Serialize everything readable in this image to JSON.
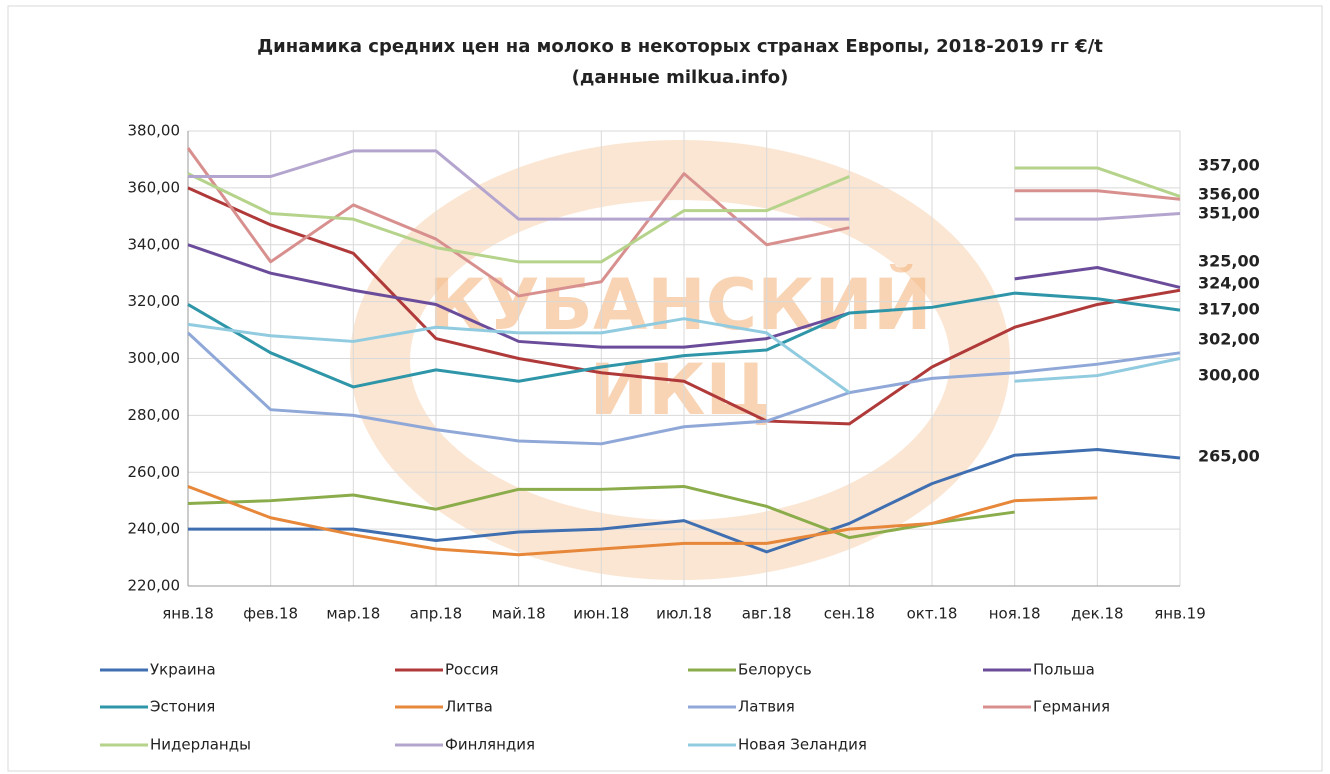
{
  "chart_data": {
    "type": "line",
    "title": [
      "Динамика средних цен на молоко в некоторых странах Европы, 2018-2019 гг €/t",
      "(данные milkua.info)"
    ],
    "watermark": [
      "КУБАНСКИЙ",
      "ИКЦ"
    ],
    "categories": [
      "янв.18",
      "фев.18",
      "мар.18",
      "апр.18",
      "май.18",
      "июн.18",
      "июл.18",
      "авг.18",
      "сен.18",
      "окт.18",
      "ноя.18",
      "дек.18",
      "янв.19"
    ],
    "ylim": [
      220,
      380
    ],
    "yticks": [
      {
        "value": 220,
        "label": "220,00"
      },
      {
        "value": 240,
        "label": "240,00"
      },
      {
        "value": 260,
        "label": "260,00"
      },
      {
        "value": 280,
        "label": "280,00"
      },
      {
        "value": 300,
        "label": "300,00"
      },
      {
        "value": 320,
        "label": "320,00"
      },
      {
        "value": 340,
        "label": "340,00"
      },
      {
        "value": 360,
        "label": "360,00"
      },
      {
        "value": 380,
        "label": "380,00"
      }
    ],
    "grid": true,
    "annotations": [
      "357,00",
      "356,00",
      "351,00",
      "325,00",
      "324,00",
      "317,00",
      "302,00",
      "300,00",
      "265,00"
    ],
    "series": [
      {
        "name": "Украина",
        "color": "#3f6fb0",
        "values": [
          240,
          240,
          240,
          236,
          239,
          240,
          243,
          232,
          242,
          256,
          266,
          268,
          265
        ]
      },
      {
        "name": "Россия",
        "color": "#b03a3a",
        "values": [
          360,
          347,
          337,
          307,
          300,
          295,
          292,
          278,
          277,
          297,
          311,
          319,
          324
        ]
      },
      {
        "name": "Белорусь",
        "color": "#8bac4a",
        "values": [
          249,
          250,
          252,
          247,
          254,
          254,
          255,
          248,
          237,
          242,
          246,
          null,
          null
        ]
      },
      {
        "name": "Польша",
        "color": "#6b4c9a",
        "values": [
          340,
          330,
          324,
          319,
          306,
          304,
          304,
          307,
          316,
          null,
          328,
          332,
          325
        ]
      },
      {
        "name": "Эстония",
        "color": "#2e96a8",
        "values": [
          319,
          302,
          290,
          296,
          292,
          297,
          301,
          303,
          316,
          318,
          323,
          321,
          317
        ]
      },
      {
        "name": "Литва",
        "color": "#e6873a",
        "values": [
          255,
          244,
          238,
          233,
          231,
          233,
          235,
          235,
          240,
          242,
          250,
          251,
          null
        ]
      },
      {
        "name": "Латвия",
        "color": "#8fa8d8",
        "values": [
          309,
          282,
          280,
          275,
          271,
          270,
          276,
          278,
          288,
          293,
          295,
          298,
          302
        ]
      },
      {
        "name": "Германия",
        "color": "#d8908e",
        "values": [
          374,
          334,
          354,
          342,
          322,
          327,
          365,
          340,
          346,
          null,
          359,
          359,
          356
        ]
      },
      {
        "name": "Нидерланды",
        "color": "#b5d38a",
        "values": [
          365,
          351,
          349,
          339,
          334,
          334,
          352,
          352,
          364,
          null,
          367,
          367,
          357
        ]
      },
      {
        "name": "Финляндия",
        "color": "#b4a5cf",
        "values": [
          364,
          364,
          373,
          373,
          349,
          349,
          349,
          349,
          349,
          null,
          349,
          349,
          351
        ]
      },
      {
        "name": "Новая Зеландия",
        "color": "#91cbe0",
        "values": [
          312,
          308,
          306,
          311,
          309,
          309,
          314,
          309,
          288,
          null,
          292,
          294,
          300
        ]
      }
    ]
  }
}
